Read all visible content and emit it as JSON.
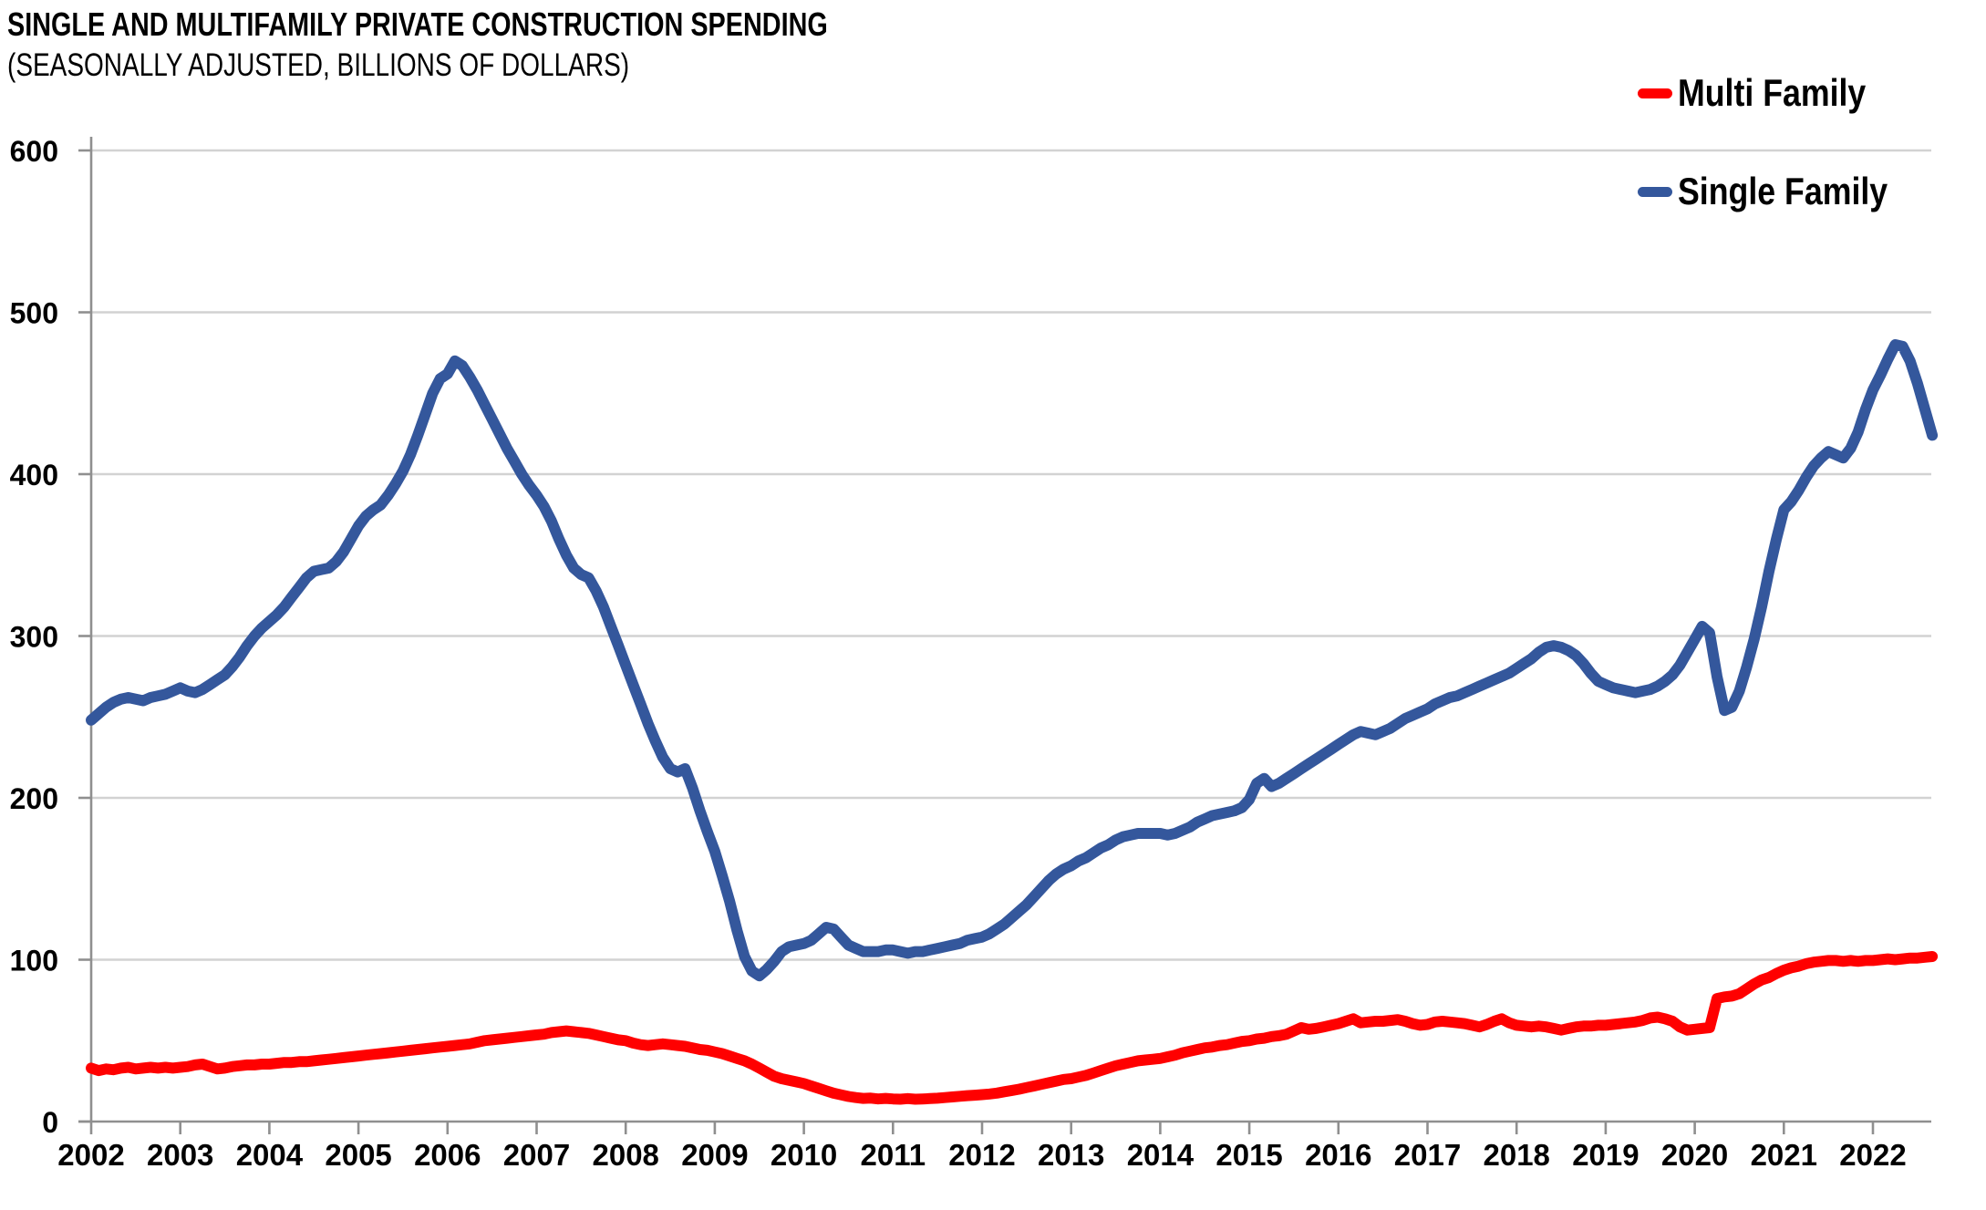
{
  "header": {
    "title": "SINGLE AND MULTIFAMILY PRIVATE CONSTRUCTION SPENDING",
    "subtitle": "(SEASONALLY ADJUSTED, BILLIONS OF DOLLARS)"
  },
  "legend": [
    {
      "label": "Multi Family",
      "color": "#FF0000"
    },
    {
      "label": "Single Family",
      "color": "#34579C"
    }
  ],
  "colors": {
    "multi_family": "#FF0000",
    "single_family": "#34579C",
    "gridline": "#D2D2D2",
    "axis": "#8F8F8F",
    "text": "#000000"
  },
  "chart_data": {
    "type": "line",
    "title": "SINGLE AND MULTIFAMILY PRIVATE CONSTRUCTION SPENDING",
    "subtitle": "(SEASONALLY ADJUSTED, BILLIONS OF DOLLARS)",
    "xlabel": "",
    "ylabel": "",
    "grid": true,
    "legend_position": "top-right",
    "ylim": [
      0,
      600
    ],
    "y_ticks": [
      0,
      100,
      200,
      300,
      400,
      500,
      600
    ],
    "x_tick_labels": [
      "2002",
      "2003",
      "2004",
      "2005",
      "2006",
      "2007",
      "2008",
      "2009",
      "2010",
      "2011",
      "2012",
      "2013",
      "2014",
      "2015",
      "2016",
      "2017",
      "2018",
      "2019",
      "2020",
      "2021",
      "2022"
    ],
    "frequency": "monthly",
    "start": {
      "year": 2002,
      "month": 1
    },
    "end": {
      "year": 2022,
      "month": 9
    },
    "series": [
      {
        "name": "Multi Family",
        "color": "#FF0000",
        "values": [
          33,
          31.5,
          32.5,
          32,
          33,
          33.5,
          32.5,
          33,
          33.5,
          33,
          33.5,
          33,
          33.5,
          34,
          35,
          35.5,
          34,
          32.5,
          33,
          34,
          34.5,
          35,
          35,
          35.5,
          35.5,
          36,
          36.5,
          36.5,
          37,
          37,
          37.5,
          38,
          38.5,
          39,
          39.5,
          40,
          40.5,
          41,
          41.5,
          42,
          42.5,
          43,
          43.5,
          44,
          44.5,
          45,
          45.5,
          46,
          46.5,
          47,
          47.5,
          48,
          49,
          50,
          50.5,
          51,
          51.5,
          52,
          52.5,
          53,
          53.5,
          54,
          55,
          55.5,
          56,
          55.5,
          55,
          54.5,
          53.5,
          52.5,
          51.5,
          50.5,
          50,
          48.5,
          47.5,
          47,
          47.5,
          48,
          47.5,
          47,
          46.5,
          45.5,
          44.5,
          44,
          43,
          42,
          40.5,
          39,
          37.5,
          35.5,
          33,
          30.5,
          28,
          26.5,
          25.5,
          24.5,
          23.5,
          22,
          20.5,
          19,
          17.5,
          16.5,
          15.5,
          14.8,
          14.3,
          14.5,
          14,
          14.3,
          14,
          13.8,
          14.2,
          13.8,
          14,
          14.2,
          14.4,
          14.8,
          15.2,
          15.6,
          16,
          16.3,
          16.6,
          17,
          17.6,
          18.4,
          19.2,
          20,
          21,
          22,
          23,
          24,
          25,
          26,
          26.5,
          27.5,
          28.5,
          30,
          31.5,
          33,
          34.5,
          35.5,
          36.5,
          37.5,
          38,
          38.5,
          39,
          40,
          41,
          42.5,
          43.5,
          44.5,
          45.5,
          46,
          47,
          47.5,
          48.5,
          49.5,
          50,
          51,
          51.5,
          52.5,
          53,
          54,
          56,
          58,
          57,
          57.5,
          58.5,
          59.5,
          60.5,
          62,
          63.5,
          61,
          61.5,
          62,
          62,
          62.5,
          63,
          62,
          60.5,
          59.5,
          60,
          61.5,
          62,
          61.5,
          61,
          60.5,
          59.5,
          58.5,
          60,
          62,
          63.5,
          61,
          59.5,
          59,
          58.5,
          59,
          58.5,
          57.5,
          56.5,
          57.5,
          58.5,
          59,
          59,
          59.5,
          59.5,
          60,
          60.5,
          61,
          61.5,
          62.5,
          64,
          64.5,
          63.5,
          62,
          58.5,
          56.5,
          57,
          57.5,
          58,
          76,
          77,
          77.5,
          79,
          82,
          85,
          87.5,
          89,
          91.5,
          93.5,
          95,
          96,
          97.5,
          98.5,
          99,
          99.5,
          99.5,
          99,
          99.5,
          99,
          99.5,
          99.5,
          100,
          100.5,
          100,
          100.5,
          101,
          101,
          101.5,
          102
        ]
      },
      {
        "name": "Single Family",
        "color": "#34579C",
        "values": [
          248,
          252,
          256,
          259,
          261,
          262,
          261,
          260,
          262,
          263,
          264,
          266,
          268,
          266,
          265,
          267,
          270,
          273,
          276,
          281,
          287,
          294,
          300,
          305,
          309,
          313,
          318,
          324,
          330,
          336,
          340,
          341,
          342,
          346,
          352,
          360,
          368,
          374,
          378,
          381,
          387,
          394,
          402,
          412,
          424,
          437,
          450,
          459,
          462,
          470,
          467,
          460,
          452,
          443,
          434,
          425,
          416,
          408,
          400,
          393,
          387,
          380,
          371,
          360,
          350,
          342,
          338,
          336,
          328,
          318,
          306,
          294,
          282,
          270,
          258,
          246,
          235,
          225,
          218,
          216,
          218,
          206,
          192,
          179,
          167,
          152,
          136,
          118,
          102,
          93,
          90,
          94,
          99,
          105,
          108,
          109,
          110,
          112,
          116,
          120,
          119,
          114,
          109,
          107,
          105,
          105,
          105,
          106,
          106,
          105,
          104,
          105,
          105,
          106,
          107,
          108,
          109,
          110,
          112,
          113,
          114,
          116,
          119,
          122,
          126,
          130,
          134,
          139,
          144,
          149,
          153,
          156,
          158,
          161,
          163,
          166,
          169,
          171,
          174,
          176,
          177,
          178,
          178,
          178,
          178,
          177,
          178,
          180,
          182,
          185,
          187,
          189,
          190,
          191,
          192,
          194,
          199,
          209,
          212,
          207,
          209,
          212,
          215,
          218,
          221,
          224,
          227,
          230,
          233,
          236,
          239,
          241,
          240,
          239,
          241,
          243,
          246,
          249,
          251,
          253,
          255,
          258,
          260,
          262,
          263,
          265,
          267,
          269,
          271,
          273,
          275,
          277,
          280,
          283,
          286,
          290,
          293,
          294,
          293,
          291,
          288,
          283,
          277,
          272,
          270,
          268,
          267,
          266,
          265,
          266,
          267,
          269,
          272,
          276,
          282,
          290,
          298,
          306,
          302,
          275,
          254,
          256,
          266,
          281,
          298,
          318,
          340,
          360,
          378,
          383,
          390,
          398,
          405,
          410,
          414,
          412,
          410,
          416,
          426,
          440,
          452,
          461,
          471,
          480,
          479,
          470,
          456,
          440,
          424
        ]
      }
    ]
  }
}
